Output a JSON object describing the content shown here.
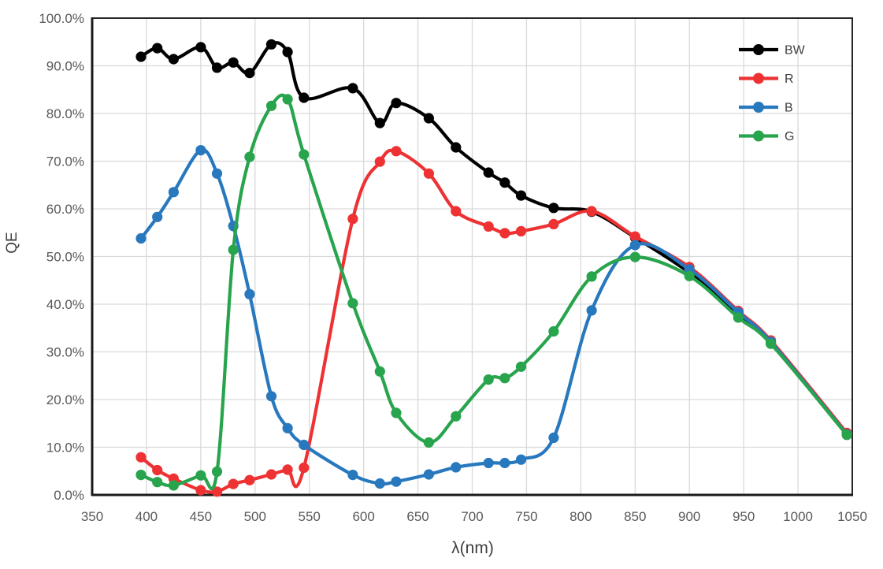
{
  "chart_data": {
    "type": "line",
    "title": "",
    "xlabel": "λ(nm)",
    "ylabel": "QE",
    "xlim": [
      350,
      1050
    ],
    "ylim": [
      0,
      100
    ],
    "grid": true,
    "legend_position": "top-right-inside",
    "x_ticks": [
      "350",
      "400",
      "450",
      "500",
      "550",
      "600",
      "650",
      "700",
      "750",
      "800",
      "850",
      "900",
      "950",
      "1000",
      "1050"
    ],
    "y_tick_labels": [
      "0.0%",
      "10.0%",
      "20.0%",
      "30.0%",
      "40.0%",
      "50.0%",
      "60.0%",
      "70.0%",
      "80.0%",
      "90.0%",
      "100.0%"
    ],
    "x": [
      395,
      410,
      425,
      450,
      465,
      480,
      495,
      515,
      530,
      545,
      590,
      615,
      630,
      660,
      685,
      715,
      730,
      745,
      775,
      810,
      850,
      900,
      945,
      975,
      1045
    ],
    "series": [
      {
        "name": "BW",
        "color": "#000000",
        "values": [
          91.9,
          93.7,
          91.4,
          93.9,
          89.6,
          90.7,
          88.5,
          94.5,
          92.9,
          83.3,
          85.3,
          78.0,
          82.2,
          79.0,
          72.9,
          67.6,
          65.5,
          62.8,
          60.2,
          59.4,
          54.0,
          46.6,
          38.0,
          31.9,
          12.8
        ]
      },
      {
        "name": "R",
        "color": "#ee3233",
        "values": [
          7.9,
          5.2,
          3.4,
          1.0,
          0.7,
          2.3,
          3.1,
          4.3,
          5.3,
          5.7,
          57.9,
          69.9,
          72.1,
          67.4,
          59.5,
          56.3,
          54.9,
          55.3,
          56.8,
          59.5,
          54.2,
          47.8,
          38.6,
          32.4,
          13.0
        ]
      },
      {
        "name": "B",
        "color": "#2878be",
        "values": [
          53.8,
          58.3,
          63.5,
          72.3,
          67.4,
          56.4,
          42.1,
          20.7,
          14.0,
          10.5,
          4.2,
          2.4,
          2.8,
          4.3,
          5.8,
          6.7,
          6.7,
          7.4,
          12.0,
          38.7,
          52.4,
          47.3,
          38.3,
          32.1,
          12.7
        ]
      },
      {
        "name": "G",
        "color": "#28a44d",
        "values": [
          4.2,
          2.7,
          2.0,
          4.1,
          4.9,
          51.4,
          70.9,
          81.6,
          83.0,
          71.4,
          40.2,
          25.9,
          17.2,
          11.0,
          16.5,
          24.2,
          24.5,
          26.9,
          34.3,
          45.8,
          49.9,
          45.9,
          37.2,
          31.7,
          12.6
        ]
      }
    ]
  },
  "colors": {
    "background": "#ffffff",
    "gridline": "#d9d9d9",
    "tick_label": "#595959",
    "axis_title": "#3f3f3f",
    "axis_line": "#1a1a1a",
    "plot_border": "#262626",
    "legend_text": "#404040"
  }
}
